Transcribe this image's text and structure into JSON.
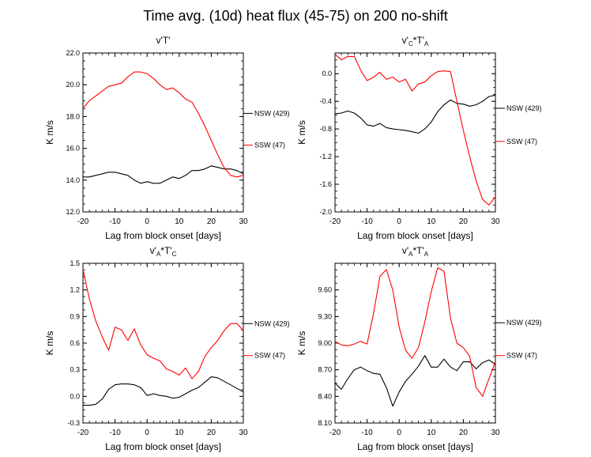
{
  "title": "Time avg. (10d) heat flux (45-75) on 200 no-shift",
  "colors": {
    "nsw": "#000000",
    "ssw": "#ff0000"
  },
  "chart_data": [
    {
      "type": "line",
      "title": "v'T'",
      "title_main": "v'T'",
      "title_sub_v": "",
      "title_mid": "",
      "title_sub_t": "",
      "xlabel": "Lag from block onset [days]",
      "ylabel": "K m/s",
      "xlim": [
        -20,
        30
      ],
      "ylim": [
        12,
        22
      ],
      "xticks": [
        "-20",
        "-10",
        "0",
        "10",
        "20",
        "30"
      ],
      "yticks": [
        "22.0",
        "20.0",
        "18.0",
        "16.0",
        "14.0",
        "12.0"
      ],
      "ytick_values": [
        22,
        20,
        18,
        16,
        14,
        12
      ],
      "legend": [
        "NSW (429)",
        "SSW (47)"
      ],
      "legend_y": [
        18.2,
        16.2
      ],
      "series": [
        {
          "name": "NSW (429)",
          "color": "black",
          "x": [
            -20,
            -18,
            -16,
            -14,
            -12,
            -10,
            -8,
            -6,
            -4,
            -2,
            0,
            2,
            4,
            6,
            8,
            10,
            12,
            14,
            16,
            18,
            20,
            22,
            24,
            26,
            28,
            30
          ],
          "y": [
            14.2,
            14.2,
            14.3,
            14.4,
            14.5,
            14.5,
            14.4,
            14.3,
            14.0,
            13.8,
            13.9,
            13.8,
            13.8,
            14.0,
            14.2,
            14.1,
            14.3,
            14.6,
            14.6,
            14.7,
            14.9,
            14.8,
            14.7,
            14.7,
            14.6,
            14.4
          ]
        },
        {
          "name": "SSW (47)",
          "color": "red",
          "x": [
            -20,
            -18,
            -16,
            -14,
            -12,
            -10,
            -8,
            -6,
            -4,
            -2,
            0,
            2,
            4,
            6,
            8,
            10,
            12,
            14,
            16,
            18,
            20,
            22,
            24,
            26,
            28,
            30
          ],
          "y": [
            18.5,
            19.0,
            19.3,
            19.6,
            19.9,
            20.0,
            20.1,
            20.5,
            20.8,
            20.8,
            20.7,
            20.4,
            20.0,
            19.7,
            19.8,
            19.5,
            19.1,
            18.9,
            18.2,
            17.4,
            16.5,
            15.6,
            14.8,
            14.3,
            14.2,
            14.3
          ]
        }
      ]
    },
    {
      "type": "line",
      "title": "v'CT'A",
      "title_main": "v'",
      "title_sub_v": "C",
      "title_mid": "*T'",
      "title_sub_t": "A",
      "xlabel": "Lag from block onset [days]",
      "ylabel": "K m/s",
      "xlim": [
        -20,
        30
      ],
      "ylim": [
        -2.0,
        0.3
      ],
      "xticks": [
        "-20",
        "-10",
        "0",
        "10",
        "20",
        "30"
      ],
      "yticks": [
        "0.0",
        "-0.4",
        "-0.8",
        "-1.2",
        "-1.6",
        "-2.0"
      ],
      "ytick_values": [
        0,
        -0.4,
        -0.8,
        -1.2,
        -1.6,
        -2.0
      ],
      "legend": [
        "NSW (429)",
        "SSW (47)"
      ],
      "legend_y": [
        -0.5,
        -0.98
      ],
      "series": [
        {
          "name": "NSW (429)",
          "color": "black",
          "x": [
            -20,
            -18,
            -16,
            -14,
            -12,
            -10,
            -8,
            -6,
            -4,
            -2,
            0,
            2,
            4,
            6,
            8,
            10,
            12,
            14,
            16,
            18,
            20,
            22,
            24,
            26,
            28,
            30
          ],
          "y": [
            -0.58,
            -0.57,
            -0.54,
            -0.57,
            -0.64,
            -0.74,
            -0.76,
            -0.72,
            -0.78,
            -0.8,
            -0.81,
            -0.82,
            -0.84,
            -0.86,
            -0.8,
            -0.7,
            -0.55,
            -0.45,
            -0.38,
            -0.43,
            -0.44,
            -0.47,
            -0.45,
            -0.4,
            -0.33,
            -0.31
          ]
        },
        {
          "name": "SSW (47)",
          "color": "red",
          "x": [
            -20,
            -18,
            -16,
            -14,
            -12,
            -10,
            -8,
            -6,
            -4,
            -2,
            0,
            2,
            4,
            6,
            8,
            10,
            12,
            14,
            16,
            18,
            20,
            22,
            24,
            26,
            28,
            30
          ],
          "y": [
            0.28,
            0.2,
            0.25,
            0.25,
            0.05,
            -0.1,
            -0.05,
            0.02,
            -0.08,
            -0.05,
            -0.12,
            -0.08,
            -0.25,
            -0.15,
            -0.12,
            -0.03,
            0.03,
            0.04,
            0.03,
            -0.4,
            -0.82,
            -1.2,
            -1.55,
            -1.82,
            -1.9,
            -1.78
          ]
        }
      ]
    },
    {
      "type": "line",
      "title": "v'AT'C",
      "title_main": "v'",
      "title_sub_v": "A",
      "title_mid": "*T'",
      "title_sub_t": "C",
      "xlabel": "Lag from block onset [days]",
      "ylabel": "K m/s",
      "xlim": [
        -20,
        30
      ],
      "ylim": [
        -0.3,
        1.5
      ],
      "xticks": [
        "-20",
        "-10",
        "0",
        "10",
        "20",
        "30"
      ],
      "yticks": [
        "1.5",
        "1.2",
        "0.9",
        "0.6",
        "0.3",
        "0.0",
        "-0.3"
      ],
      "ytick_values": [
        1.5,
        1.2,
        0.9,
        0.6,
        0.3,
        0.0,
        -0.3
      ],
      "legend": [
        "NSW (429)",
        "SSW (47)"
      ],
      "legend_y": [
        0.82,
        0.46
      ],
      "series": [
        {
          "name": "NSW (429)",
          "color": "black",
          "x": [
            -20,
            -18,
            -16,
            -14,
            -12,
            -10,
            -8,
            -6,
            -4,
            -2,
            0,
            2,
            4,
            6,
            8,
            10,
            12,
            14,
            16,
            18,
            20,
            22,
            24,
            26,
            28,
            30
          ],
          "y": [
            -0.1,
            -0.1,
            -0.09,
            -0.03,
            0.08,
            0.13,
            0.14,
            0.14,
            0.13,
            0.1,
            0.01,
            0.03,
            0.01,
            0.0,
            -0.02,
            -0.01,
            0.03,
            0.07,
            0.1,
            0.16,
            0.22,
            0.21,
            0.17,
            0.13,
            0.09,
            0.05
          ]
        },
        {
          "name": "SSW (47)",
          "color": "red",
          "x": [
            -20,
            -18,
            -16,
            -14,
            -12,
            -10,
            -8,
            -6,
            -4,
            -2,
            0,
            2,
            4,
            6,
            8,
            10,
            12,
            14,
            16,
            18,
            20,
            22,
            24,
            26,
            28,
            30
          ],
          "y": [
            1.43,
            1.1,
            0.85,
            0.67,
            0.52,
            0.78,
            0.75,
            0.63,
            0.76,
            0.58,
            0.47,
            0.43,
            0.4,
            0.31,
            0.28,
            0.24,
            0.32,
            0.2,
            0.28,
            0.45,
            0.55,
            0.63,
            0.74,
            0.82,
            0.82,
            0.74
          ]
        }
      ]
    },
    {
      "type": "line",
      "title": "v'AT'A",
      "title_main": "v'",
      "title_sub_v": "A",
      "title_mid": "*T'",
      "title_sub_t": "A",
      "xlabel": "Lag from block onset [days]",
      "ylabel": "K m/s",
      "xlim": [
        -20,
        30
      ],
      "ylim": [
        8.1,
        9.9
      ],
      "xticks": [
        "-20",
        "-10",
        "0",
        "10",
        "20",
        "30"
      ],
      "yticks": [
        "9.60",
        "9.30",
        "9.00",
        "8.70",
        "8.40",
        "8.10"
      ],
      "ytick_values": [
        9.6,
        9.3,
        9.0,
        8.7,
        8.4,
        8.1
      ],
      "legend": [
        "NSW (429)",
        "SSW (47)"
      ],
      "legend_y": [
        9.23,
        8.86
      ],
      "series": [
        {
          "name": "NSW (429)",
          "color": "black",
          "x": [
            -20,
            -18,
            -16,
            -14,
            -12,
            -10,
            -8,
            -6,
            -4,
            -2,
            0,
            2,
            4,
            6,
            8,
            10,
            12,
            14,
            16,
            18,
            20,
            22,
            24,
            26,
            28,
            30
          ],
          "y": [
            8.55,
            8.48,
            8.6,
            8.7,
            8.73,
            8.69,
            8.66,
            8.65,
            8.5,
            8.29,
            8.45,
            8.57,
            8.65,
            8.74,
            8.86,
            8.73,
            8.73,
            8.82,
            8.73,
            8.69,
            8.79,
            8.79,
            8.71,
            8.78,
            8.81,
            8.76
          ]
        },
        {
          "name": "SSW (47)",
          "color": "red",
          "x": [
            -20,
            -18,
            -16,
            -14,
            -12,
            -10,
            -8,
            -6,
            -4,
            -2,
            0,
            2,
            4,
            6,
            8,
            10,
            12,
            14,
            16,
            18,
            20,
            22,
            24,
            26,
            28,
            30
          ],
          "y": [
            9.02,
            8.98,
            8.97,
            8.99,
            9.02,
            8.99,
            9.33,
            9.75,
            9.83,
            9.6,
            9.18,
            8.92,
            8.83,
            8.95,
            9.24,
            9.58,
            9.85,
            9.81,
            9.28,
            9.0,
            8.95,
            8.85,
            8.5,
            8.4,
            8.6,
            8.79
          ]
        }
      ]
    }
  ]
}
